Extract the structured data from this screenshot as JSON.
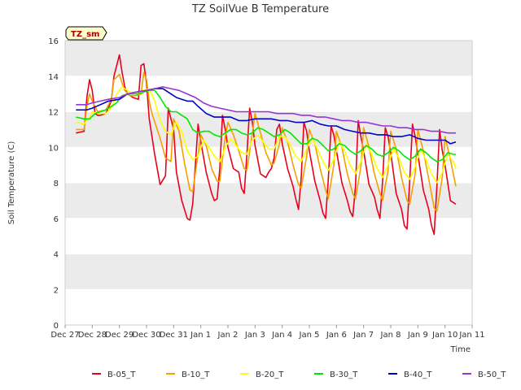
{
  "chart_data": {
    "type": "line",
    "title": "TZ SoilVue B Temperature",
    "xlabel": "Time",
    "ylabel": "Soil Temperature (C)",
    "badge": "TZ_sm",
    "x_ticks": [
      "Dec 27",
      "Dec 28",
      "Dec 29",
      "Dec 30",
      "Dec 31",
      "Jan 1",
      "Jan 2",
      "Jan 3",
      "Jan 4",
      "Jan 5",
      "Jan 6",
      "Jan 7",
      "Jan 8",
      "Jan 9",
      "Jan 10",
      "Jan 11"
    ],
    "y_ticks": [
      0,
      2,
      4,
      6,
      8,
      10,
      12,
      14,
      16
    ],
    "xlim_days": [
      0,
      15
    ],
    "ylim": [
      0,
      16
    ],
    "grid": "horizontal bands",
    "legend_position": "bottom",
    "colors": {
      "B-05_T": "#e8001c",
      "B-10_T": "#f5a000",
      "B-20_T": "#ffff00",
      "B-30_T": "#00e800",
      "B-40_T": "#0000c8",
      "B-50_T": "#9a33d6",
      "band": "#ebebeb",
      "badge_bg": "#ffffcc"
    },
    "series": [
      {
        "name": "B-05_T",
        "x": [
          0.4,
          0.7,
          0.8,
          0.9,
          1.0,
          1.1,
          1.2,
          1.3,
          1.5,
          1.7,
          1.8,
          2.0,
          2.1,
          2.2,
          2.3,
          2.4,
          2.5,
          2.7,
          2.8,
          2.9,
          3.0,
          3.1,
          3.2,
          3.3,
          3.5,
          3.7,
          3.8,
          4.0,
          4.1,
          4.3,
          4.5,
          4.6,
          4.7,
          4.8,
          4.9,
          5.0,
          5.2,
          5.4,
          5.5,
          5.6,
          5.7,
          5.8,
          5.9,
          6.0,
          6.2,
          6.4,
          6.5,
          6.6,
          6.7,
          6.8,
          6.9,
          7.0,
          7.2,
          7.4,
          7.5,
          7.6,
          7.7,
          7.8,
          7.9,
          8.0,
          8.2,
          8.4,
          8.5,
          8.6,
          8.7,
          8.8,
          8.9,
          9.0,
          9.2,
          9.4,
          9.5,
          9.6,
          9.7,
          9.8,
          9.9,
          10.0,
          10.2,
          10.4,
          10.5,
          10.6,
          10.7,
          10.8,
          10.9,
          11.0,
          11.2,
          11.4,
          11.5,
          11.6,
          11.7,
          11.8,
          11.9,
          12.0,
          12.2,
          12.4,
          12.5,
          12.6,
          12.7,
          12.8,
          12.9,
          13.0,
          13.2,
          13.4,
          13.5,
          13.6,
          13.7,
          13.8,
          13.9,
          14.0,
          14.2,
          14.4
        ],
        "y": [
          10.8,
          10.9,
          12.8,
          13.8,
          13.2,
          11.9,
          11.8,
          11.8,
          11.9,
          12.6,
          14.0,
          15.2,
          14.2,
          13.4,
          13.0,
          12.9,
          12.8,
          12.7,
          14.6,
          14.7,
          13.6,
          11.6,
          10.6,
          9.6,
          7.9,
          8.4,
          12.2,
          11.0,
          8.6,
          7.0,
          6.0,
          5.9,
          6.8,
          9.0,
          11.3,
          10.3,
          8.6,
          7.4,
          7.0,
          7.1,
          8.8,
          11.8,
          11.0,
          10.0,
          8.8,
          8.6,
          7.7,
          7.4,
          9.6,
          12.2,
          11.4,
          10.1,
          8.5,
          8.3,
          8.6,
          8.8,
          9.4,
          11.0,
          11.3,
          10.2,
          8.8,
          7.8,
          7.1,
          6.5,
          8.3,
          11.4,
          10.9,
          9.8,
          8.1,
          7.0,
          6.3,
          6.0,
          8.2,
          11.2,
          10.7,
          9.8,
          8.0,
          7.0,
          6.4,
          6.1,
          7.8,
          11.5,
          10.6,
          9.8,
          7.9,
          7.2,
          6.5,
          6.0,
          8.1,
          11.1,
          10.6,
          9.7,
          7.4,
          6.5,
          5.6,
          5.4,
          8.1,
          11.3,
          10.6,
          9.6,
          7.6,
          6.5,
          5.6,
          5.1,
          7.8,
          11.0,
          9.8,
          9.0,
          7.0,
          6.8
        ]
      },
      {
        "name": "B-10_T",
        "x": [
          0.4,
          0.7,
          0.8,
          0.9,
          1.0,
          1.2,
          1.5,
          1.7,
          1.8,
          2.0,
          2.1,
          2.2,
          2.4,
          2.6,
          2.8,
          2.9,
          3.0,
          3.1,
          3.2,
          3.5,
          3.7,
          3.9,
          4.0,
          4.2,
          4.4,
          4.6,
          4.7,
          4.9,
          5.0,
          5.2,
          5.4,
          5.6,
          5.7,
          5.9,
          6.0,
          6.2,
          6.4,
          6.6,
          6.7,
          6.9,
          7.0,
          7.2,
          7.4,
          7.6,
          7.7,
          7.9,
          8.0,
          8.2,
          8.4,
          8.6,
          8.7,
          8.9,
          9.0,
          9.2,
          9.4,
          9.6,
          9.7,
          9.9,
          10.0,
          10.2,
          10.4,
          10.6,
          10.7,
          10.9,
          11.0,
          11.2,
          11.4,
          11.6,
          11.7,
          11.9,
          12.0,
          12.2,
          12.4,
          12.6,
          12.7,
          12.9,
          13.0,
          13.2,
          13.4,
          13.6,
          13.7,
          13.9,
          14.0,
          14.2,
          14.4
        ],
        "y": [
          11.0,
          11.0,
          12.3,
          13.0,
          12.6,
          12.0,
          12.1,
          12.7,
          13.8,
          14.1,
          13.6,
          13.2,
          12.9,
          12.9,
          13.0,
          14.2,
          13.8,
          12.6,
          11.9,
          10.5,
          9.4,
          9.2,
          11.6,
          10.9,
          9.1,
          7.6,
          7.5,
          9.6,
          10.7,
          10.1,
          8.8,
          8.1,
          8.1,
          10.6,
          11.4,
          10.7,
          9.8,
          8.8,
          8.7,
          10.8,
          11.9,
          10.8,
          9.7,
          9.0,
          9.1,
          10.2,
          11.1,
          10.3,
          9.0,
          7.9,
          7.7,
          9.5,
          11.0,
          10.2,
          8.8,
          7.6,
          7.1,
          9.0,
          10.9,
          10.0,
          8.5,
          7.4,
          7.1,
          8.9,
          11.1,
          10.0,
          8.5,
          7.4,
          7.0,
          8.7,
          10.9,
          9.9,
          8.3,
          7.0,
          6.8,
          8.5,
          11.0,
          9.8,
          8.2,
          6.6,
          6.4,
          8.3,
          10.6,
          9.3,
          7.8
        ]
      },
      {
        "name": "B-20_T",
        "x": [
          0.4,
          0.7,
          0.9,
          1.0,
          1.2,
          1.5,
          1.7,
          1.9,
          2.1,
          2.3,
          2.5,
          2.7,
          2.9,
          3.1,
          3.3,
          3.5,
          3.7,
          3.9,
          4.1,
          4.3,
          4.5,
          4.7,
          4.9,
          5.1,
          5.3,
          5.5,
          5.7,
          5.9,
          6.1,
          6.3,
          6.5,
          6.7,
          6.9,
          7.1,
          7.3,
          7.5,
          7.7,
          7.9,
          8.1,
          8.3,
          8.5,
          8.7,
          8.9,
          9.1,
          9.3,
          9.5,
          9.7,
          9.9,
          10.1,
          10.3,
          10.5,
          10.7,
          10.9,
          11.1,
          11.3,
          11.5,
          11.7,
          11.9,
          12.1,
          12.3,
          12.5,
          12.7,
          12.9,
          13.1,
          13.3,
          13.5,
          13.7,
          13.9,
          14.1,
          14.3,
          14.4
        ],
        "y": [
          11.4,
          11.3,
          11.7,
          12.0,
          11.9,
          11.9,
          12.2,
          13.0,
          13.4,
          13.2,
          13.0,
          13.0,
          13.2,
          13.3,
          12.6,
          11.5,
          10.9,
          10.7,
          11.4,
          10.9,
          9.8,
          9.3,
          9.5,
          10.4,
          10.0,
          9.5,
          9.2,
          10.0,
          10.5,
          10.1,
          9.7,
          9.6,
          10.4,
          10.7,
          10.3,
          9.9,
          9.9,
          10.6,
          10.6,
          10.1,
          9.5,
          9.2,
          9.9,
          10.5,
          9.9,
          9.2,
          8.7,
          9.3,
          10.3,
          9.8,
          9.0,
          8.5,
          9.2,
          10.2,
          9.6,
          8.8,
          8.3,
          9.0,
          9.9,
          9.4,
          8.6,
          8.2,
          8.9,
          9.9,
          9.3,
          8.5,
          8.0,
          8.6,
          9.6,
          9.2,
          8.8
        ]
      },
      {
        "name": "B-30_T",
        "x": [
          0.4,
          0.7,
          0.9,
          1.1,
          1.3,
          1.5,
          1.7,
          1.9,
          2.1,
          2.3,
          2.5,
          2.7,
          2.9,
          3.1,
          3.3,
          3.5,
          3.7,
          3.9,
          4.1,
          4.3,
          4.5,
          4.7,
          4.9,
          5.1,
          5.3,
          5.5,
          5.7,
          5.9,
          6.1,
          6.3,
          6.5,
          6.7,
          6.9,
          7.1,
          7.3,
          7.5,
          7.7,
          7.9,
          8.1,
          8.3,
          8.5,
          8.7,
          8.9,
          9.1,
          9.3,
          9.5,
          9.7,
          9.9,
          10.1,
          10.3,
          10.5,
          10.7,
          10.9,
          11.1,
          11.3,
          11.5,
          11.7,
          11.9,
          12.1,
          12.3,
          12.5,
          12.7,
          12.9,
          13.1,
          13.3,
          13.5,
          13.7,
          13.9,
          14.1,
          14.3,
          14.4
        ],
        "y": [
          11.7,
          11.6,
          11.6,
          11.9,
          12.0,
          12.1,
          12.3,
          12.5,
          12.9,
          13.0,
          13.0,
          13.0,
          13.1,
          13.2,
          13.2,
          12.8,
          12.3,
          12.0,
          12.0,
          11.8,
          11.6,
          11.0,
          10.8,
          10.9,
          10.9,
          10.7,
          10.6,
          10.8,
          11.0,
          11.0,
          10.8,
          10.7,
          10.8,
          11.1,
          11.0,
          10.8,
          10.6,
          10.7,
          11.0,
          10.8,
          10.5,
          10.2,
          10.2,
          10.5,
          10.4,
          10.1,
          9.8,
          9.9,
          10.2,
          10.1,
          9.8,
          9.6,
          9.8,
          10.1,
          9.9,
          9.6,
          9.5,
          9.7,
          10.0,
          9.8,
          9.5,
          9.3,
          9.5,
          9.9,
          9.7,
          9.4,
          9.2,
          9.3,
          9.7,
          9.6,
          9.6
        ]
      },
      {
        "name": "B-40_T",
        "x": [
          0.4,
          0.8,
          1.0,
          1.3,
          1.6,
          2.0,
          2.3,
          2.6,
          3.0,
          3.3,
          3.6,
          3.9,
          4.1,
          4.3,
          4.5,
          4.7,
          4.9,
          5.2,
          5.5,
          5.8,
          6.1,
          6.4,
          6.7,
          7.0,
          7.3,
          7.6,
          7.9,
          8.2,
          8.5,
          8.8,
          9.1,
          9.4,
          9.7,
          10.0,
          10.3,
          10.6,
          10.9,
          11.2,
          11.5,
          11.8,
          12.1,
          12.4,
          12.7,
          13.0,
          13.3,
          13.6,
          13.8,
          14.0,
          14.2,
          14.4
        ],
        "y": [
          12.1,
          12.1,
          12.2,
          12.4,
          12.6,
          12.7,
          13.0,
          13.1,
          13.2,
          13.3,
          13.3,
          13.0,
          12.8,
          12.7,
          12.6,
          12.6,
          12.3,
          11.9,
          11.7,
          11.7,
          11.7,
          11.5,
          11.5,
          11.6,
          11.6,
          11.6,
          11.5,
          11.5,
          11.4,
          11.4,
          11.5,
          11.3,
          11.2,
          11.2,
          11.0,
          10.9,
          10.8,
          10.8,
          10.7,
          10.7,
          10.6,
          10.6,
          10.7,
          10.5,
          10.4,
          10.4,
          10.4,
          10.4,
          10.2,
          10.3
        ]
      },
      {
        "name": "B-50_T",
        "x": [
          0.4,
          0.8,
          1.0,
          1.3,
          1.6,
          2.0,
          2.3,
          2.6,
          3.0,
          3.3,
          3.6,
          3.9,
          4.2,
          4.5,
          4.8,
          5.1,
          5.4,
          5.7,
          6.0,
          6.3,
          6.6,
          6.9,
          7.2,
          7.5,
          7.8,
          8.1,
          8.4,
          8.7,
          9.0,
          9.3,
          9.6,
          9.9,
          10.2,
          10.5,
          10.8,
          11.1,
          11.4,
          11.7,
          12.0,
          12.3,
          12.6,
          12.9,
          13.2,
          13.5,
          13.8,
          14.1,
          14.4
        ],
        "y": [
          12.4,
          12.4,
          12.5,
          12.6,
          12.7,
          12.8,
          13.0,
          13.1,
          13.2,
          13.3,
          13.4,
          13.3,
          13.2,
          13.0,
          12.8,
          12.5,
          12.3,
          12.2,
          12.1,
          12.0,
          12.0,
          12.0,
          12.0,
          12.0,
          11.9,
          11.9,
          11.9,
          11.8,
          11.8,
          11.7,
          11.7,
          11.6,
          11.5,
          11.5,
          11.4,
          11.4,
          11.3,
          11.2,
          11.2,
          11.1,
          11.1,
          11.0,
          11.0,
          10.9,
          10.9,
          10.8,
          10.8
        ]
      }
    ]
  }
}
